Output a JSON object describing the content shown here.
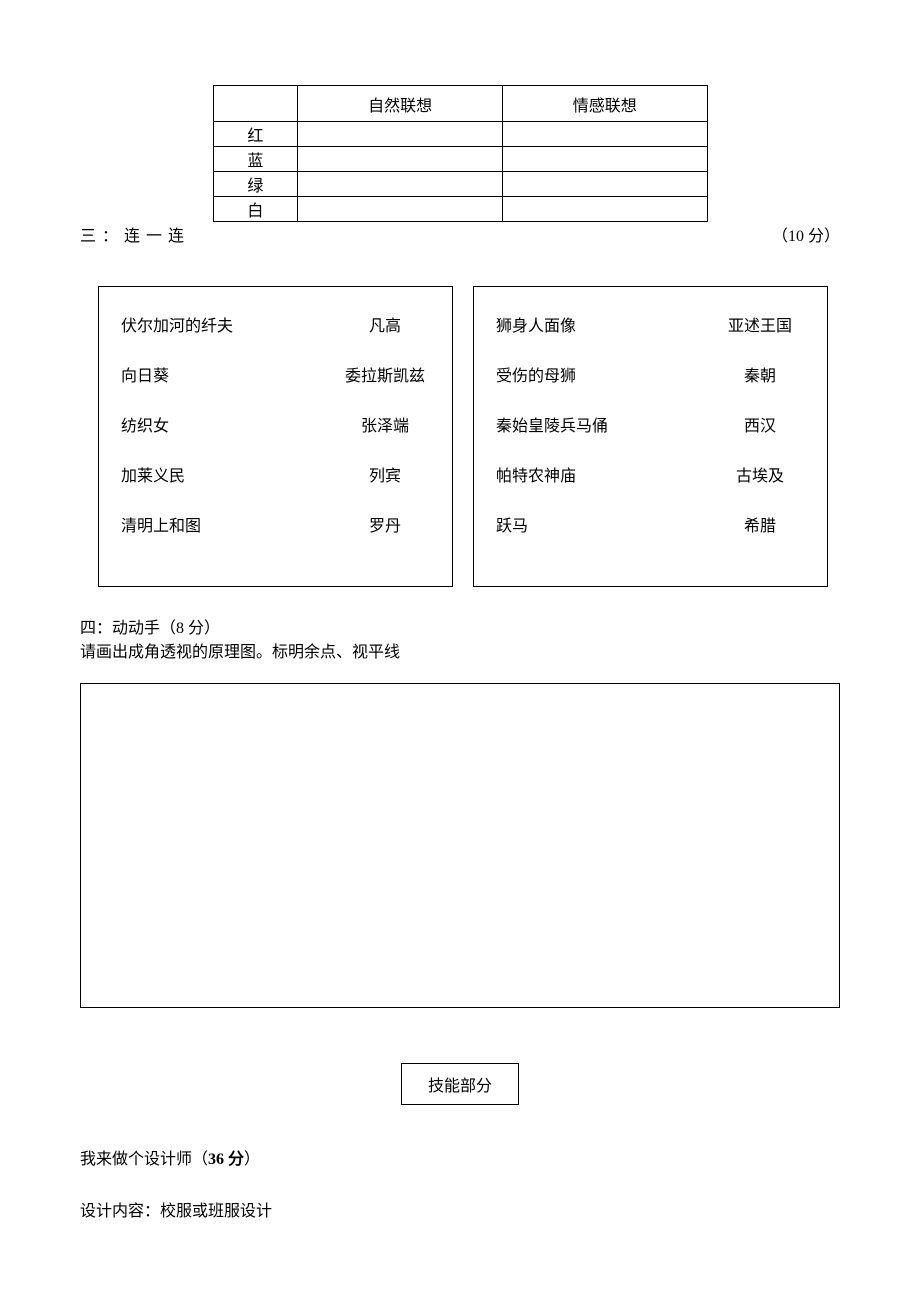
{
  "colorTable": {
    "headers": [
      "",
      "自然联想",
      "情感联想"
    ],
    "rows": [
      "红",
      "蓝",
      "绿",
      "白"
    ]
  },
  "section3": {
    "label": "三：连一连",
    "points": "（10 分）"
  },
  "matchLeft": {
    "rows": [
      {
        "l": "伏尔加河的纤夫",
        "r": "凡高"
      },
      {
        "l": "向日葵",
        "r": "委拉斯凯兹"
      },
      {
        "l": "纺织女",
        "r": "张泽端"
      },
      {
        "l": "加莱义民",
        "r": "列宾"
      },
      {
        "l": "清明上和图",
        "r": "罗丹"
      }
    ]
  },
  "matchRight": {
    "rows": [
      {
        "l": "狮身人面像",
        "r": "亚述王国"
      },
      {
        "l": "受伤的母狮",
        "r": "秦朝"
      },
      {
        "l": "秦始皇陵兵马俑",
        "r": "西汉"
      },
      {
        "l": "帕特农神庙",
        "r": "古埃及"
      },
      {
        "l": "跃马",
        "r": "希腊"
      }
    ]
  },
  "section4": {
    "title": "四：动动手（8 分）",
    "instruction": "请画出成角透视的原理图。标明余点、视平线"
  },
  "skill": {
    "label": "技能部分"
  },
  "designer": {
    "prefix": "我来做个设计师（",
    "points": "36 分",
    "suffix": "）"
  },
  "designContent": {
    "label": "设计内容：校服或班服设计"
  }
}
